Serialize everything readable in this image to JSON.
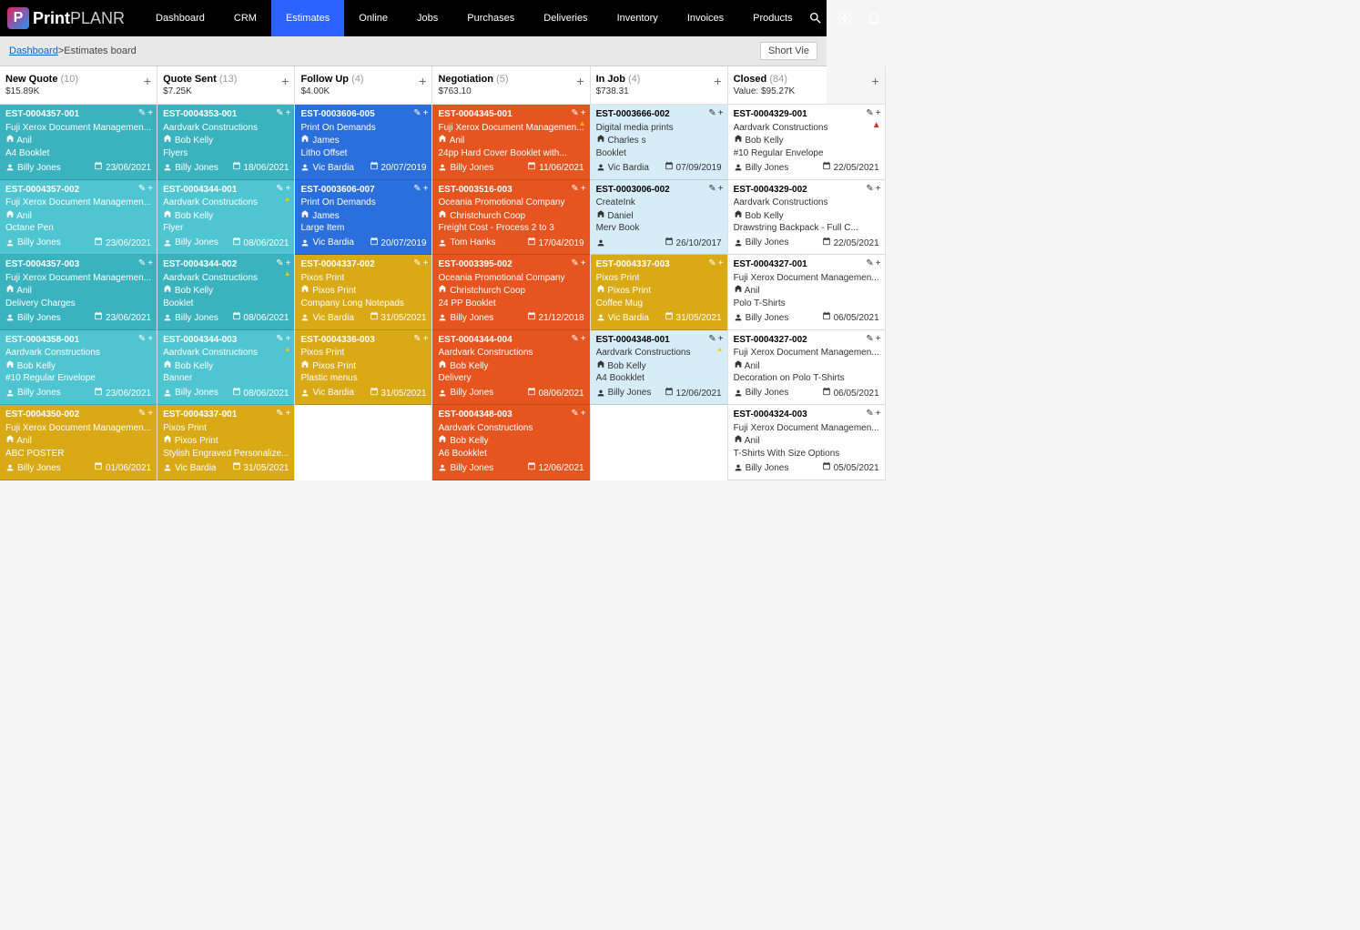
{
  "brand": {
    "print": "Print",
    "planr": "PLANR"
  },
  "nav": [
    "Dashboard",
    "CRM",
    "Estimates",
    "Online",
    "Jobs",
    "Purchases",
    "Deliveries",
    "Inventory",
    "Invoices",
    "Products"
  ],
  "nav_active_index": 2,
  "breadcrumb": {
    "link": "Dashboard",
    "sep": " > ",
    "current": "Estimates board"
  },
  "short_view": "Short Vie",
  "columns": [
    {
      "title": "New Quote",
      "count": "(10)",
      "sub": "$15.89K",
      "cards": [
        {
          "est": "EST-0004357-001",
          "company": "Fuji Xerox Document Managemen...",
          "contact": "Anil",
          "product": "A4 Booklet",
          "owner": "Billy Jones",
          "date": "23/06/2021",
          "theme": "c-teal"
        },
        {
          "est": "EST-0004357-002",
          "company": "Fuji Xerox Document Managemen...",
          "contact": "Anil",
          "product": "Octane Pen",
          "owner": "Billy Jones",
          "date": "23/06/2021",
          "theme": "c-teal2"
        },
        {
          "est": "EST-0004357-003",
          "company": "Fuji Xerox Document Managemen...",
          "contact": "Anil",
          "product": "Delivery Charges",
          "owner": "Billy Jones",
          "date": "23/06/2021",
          "theme": "c-teal"
        },
        {
          "est": "EST-0004358-001",
          "company": "Aardvark Constructions",
          "contact": "Bob Kelly",
          "product": "#10 Regular Envelope",
          "owner": "Billy Jones",
          "date": "23/06/2021",
          "theme": "c-teal2"
        },
        {
          "est": "EST-0004350-002",
          "company": "Fuji Xerox Document Managemen...",
          "contact": "Anil",
          "product": "ABC POSTER",
          "owner": "Billy Jones",
          "date": "01/06/2021",
          "theme": "c-yellow"
        }
      ]
    },
    {
      "title": "Quote Sent",
      "count": "(13)",
      "sub": "$7.25K",
      "cards": [
        {
          "est": "EST-0004353-001",
          "company": "Aardvark Constructions",
          "contact": "Bob Kelly",
          "product": "Flyers",
          "owner": "Billy Jones",
          "date": "18/06/2021",
          "theme": "c-teal"
        },
        {
          "est": "EST-0004344-001",
          "company": "Aardvark Constructions",
          "contact": "Bob Kelly",
          "product": "Flyer",
          "owner": "Billy Jones",
          "date": "08/06/2021",
          "theme": "c-teal2",
          "warn": true
        },
        {
          "est": "EST-0004344-002",
          "company": "Aardvark Constructions",
          "contact": "Bob Kelly",
          "product": "Booklet",
          "owner": "Billy Jones",
          "date": "08/06/2021",
          "theme": "c-teal",
          "warn": true
        },
        {
          "est": "EST-0004344-003",
          "company": "Aardvark Constructions",
          "contact": "Bob Kelly",
          "product": "Banner",
          "owner": "Billy Jones",
          "date": "08/06/2021",
          "theme": "c-teal2",
          "warn": true
        },
        {
          "est": "EST-0004337-001",
          "company": "Pixos Print",
          "contact": "Pixos Print",
          "product": "Stylish Engraved Personalize...",
          "owner": "Vic Bardia",
          "date": "31/05/2021",
          "theme": "c-yellow"
        }
      ]
    },
    {
      "title": "Follow Up",
      "count": "(4)",
      "sub": "$4.00K",
      "cards": [
        {
          "est": "EST-0003606-005",
          "company": "Print On Demands",
          "contact": "James",
          "product": "Litho Offset",
          "owner": "Vic Bardia",
          "date": "20/07/2019",
          "theme": "c-blue"
        },
        {
          "est": "EST-0003606-007",
          "company": "Print On Demands",
          "contact": "James",
          "product": "Large Item",
          "owner": "Vic Bardia",
          "date": "20/07/2019",
          "theme": "c-blue"
        },
        {
          "est": "EST-0004337-002",
          "company": "Pixos Print",
          "contact": "Pixos Print",
          "product": "Company Long Notepads",
          "owner": "Vic Bardia",
          "date": "31/05/2021",
          "theme": "c-yellow"
        },
        {
          "est": "EST-0004336-003",
          "company": "Pixos Print",
          "contact": "Pixos Print",
          "product": "Plastic menus",
          "owner": "Vic Bardia",
          "date": "31/05/2021",
          "theme": "c-yellow"
        }
      ]
    },
    {
      "title": "Negotiation",
      "count": "(5)",
      "sub": "$763.10",
      "cards": [
        {
          "est": "EST-0004345-001",
          "company": "Fuji Xerox Document Managemen...",
          "contact": "Anil",
          "product": "24pp Hard Cover Booklet with...",
          "owner": "Billy Jones",
          "date": "11/06/2021",
          "theme": "c-orange",
          "warn": true
        },
        {
          "est": "EST-0003516-003",
          "company": "Oceania Promotional Company",
          "contact": "Christchurch Coop",
          "product": "Freight Cost - Process 2 to 3",
          "owner": "Tom Hanks",
          "date": "17/04/2019",
          "theme": "c-orange"
        },
        {
          "est": "EST-0003395-002",
          "company": "Oceania Promotional Company",
          "contact": "Christchurch Coop",
          "product": "24 PP Booklet",
          "owner": "Billy Jones",
          "date": "21/12/2018",
          "theme": "c-orange"
        },
        {
          "est": "EST-0004344-004",
          "company": "Aardvark Constructions",
          "contact": "Bob Kelly",
          "product": "Delivery",
          "owner": "Billy Jones",
          "date": "08/06/2021",
          "theme": "c-orange"
        },
        {
          "est": "EST-0004348-003",
          "company": "Aardvark Constructions",
          "contact": "Bob Kelly",
          "product": "A6 Bookklet",
          "owner": "Billy Jones",
          "date": "12/06/2021",
          "theme": "c-orange"
        }
      ]
    },
    {
      "title": "In Job",
      "count": "(4)",
      "sub": "$738.31",
      "cards": [
        {
          "est": "EST-0003666-002",
          "company": "Digital media prints",
          "contact": "Charles s",
          "product": "Booklet",
          "owner": "Vic Bardia",
          "date": "07/09/2019",
          "theme": "c-lightblue"
        },
        {
          "est": "EST-0003006-002",
          "company": "CreateInk",
          "contact": "Daniel",
          "product": "Merv Book",
          "owner": "",
          "date": "26/10/2017",
          "theme": "c-lightblue"
        },
        {
          "est": "EST-0004337-003",
          "company": "Pixos Print",
          "contact": "Pixos Print",
          "product": "Coffee Mug",
          "owner": "Vic Bardia",
          "date": "31/05/2021",
          "theme": "c-yellow"
        },
        {
          "est": "EST-0004348-001",
          "company": "Aardvark Constructions",
          "contact": "Bob Kelly",
          "product": "A4 Bookklet",
          "owner": "Billy Jones",
          "date": "12/06/2021",
          "theme": "c-lightblue",
          "warn": true
        }
      ]
    },
    {
      "title": "Closed",
      "count": "(84)",
      "sub": "Value: $95.27K",
      "cards": [
        {
          "est": "EST-0004329-001",
          "company": "Aardvark Constructions",
          "contact": "Bob Kelly",
          "product": "#10 Regular Envelope",
          "owner": "Billy Jones",
          "date": "22/05/2021",
          "theme": "c-white",
          "redwarn": true
        },
        {
          "est": "EST-0004329-002",
          "company": "Aardvark Constructions",
          "contact": "Bob Kelly",
          "product": "Drawstring Backpack - Full C...",
          "owner": "Billy Jones",
          "date": "22/05/2021",
          "theme": "c-white"
        },
        {
          "est": "EST-0004327-001",
          "company": "Fuji Xerox Document Managemen...",
          "contact": "Anil",
          "product": "Polo T-Shirts",
          "owner": "Billy Jones",
          "date": "06/05/2021",
          "theme": "c-white"
        },
        {
          "est": "EST-0004327-002",
          "company": "Fuji Xerox Document Managemen...",
          "contact": "Anil",
          "product": "Decoration on Polo T-Shirts",
          "owner": "Billy Jones",
          "date": "06/05/2021",
          "theme": "c-white"
        },
        {
          "est": "EST-0004324-003",
          "company": "Fuji Xerox Document Managemen...",
          "contact": "Anil",
          "product": "T-Shirts With Size Options",
          "owner": "Billy Jones",
          "date": "05/05/2021",
          "theme": "c-white"
        }
      ]
    }
  ]
}
